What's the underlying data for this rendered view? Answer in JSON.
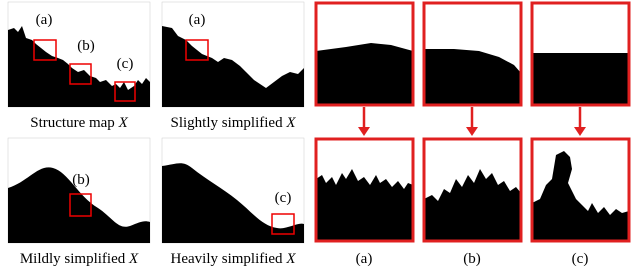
{
  "panels": [
    {
      "caption": "Structure map",
      "variable": "X",
      "markers": [
        "(a)",
        "(b)",
        "(c)"
      ]
    },
    {
      "caption": "Slightly simplified",
      "variable": "X",
      "markers": [
        "(a)"
      ]
    },
    {
      "caption": "Mildly simplified",
      "variable": "X",
      "markers": [
        "(b)"
      ]
    },
    {
      "caption": "Heavily simplified",
      "variable": "X",
      "markers": [
        "(c)"
      ]
    }
  ],
  "crops": [
    {
      "label": "(a)"
    },
    {
      "label": "(b)"
    },
    {
      "label": "(c)"
    }
  ]
}
